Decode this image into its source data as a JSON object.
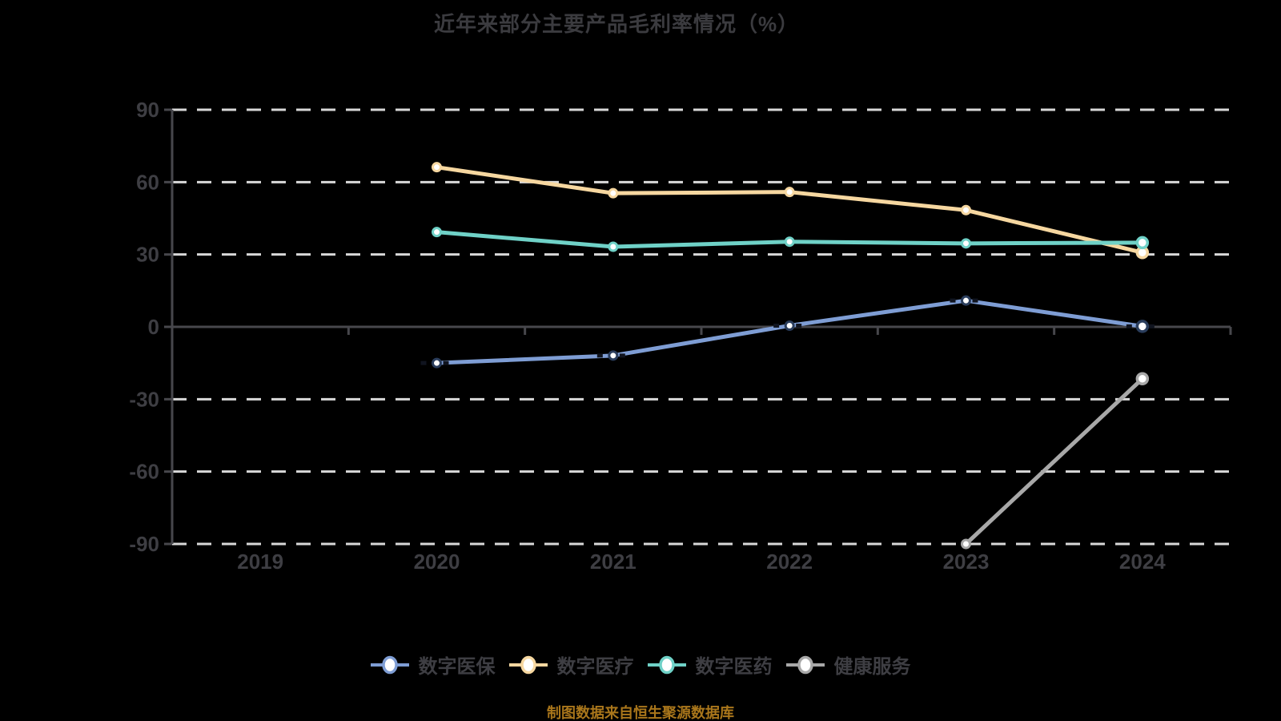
{
  "title": {
    "text": "近年来部分主要产品毛利率情况（%）"
  },
  "caption": {
    "text": "制图数据来自恒生聚源数据库",
    "color": "#A9761B"
  },
  "chart_data": {
    "type": "line",
    "title": "近年来部分主要产品毛利率情况（%）",
    "categories": [
      "2019",
      "2020",
      "2021",
      "2022",
      "2023",
      "2024"
    ],
    "yticks": [
      90,
      60,
      30,
      0,
      -30,
      -60,
      -90
    ],
    "ylim": [
      -90,
      90
    ],
    "grid": "horizontal dashed gridlines, solid zero axis line",
    "legend_position": "bottom",
    "background_color": "#000000",
    "axis_color": "#47474C",
    "gridline_color": "#D8D8D8",
    "label_color": "#3E3E43",
    "title_color": "#3B3B3F",
    "series": [
      {
        "name": "数字医保",
        "color": "#7E9DD4",
        "marker_ring": "#2A3D5C",
        "dash_accent": true,
        "values": [
          null,
          -15.0,
          -11.9,
          0.5,
          10.9,
          0.2
        ]
      },
      {
        "name": "数字医疗",
        "color": "#F6D7A0",
        "values": [
          null,
          66.2,
          55.4,
          55.9,
          48.4,
          30.8
        ]
      },
      {
        "name": "数字医药",
        "color": "#6FD1C7",
        "values": [
          null,
          39.3,
          33.2,
          35.3,
          34.6,
          34.9
        ]
      },
      {
        "name": "健康服务",
        "color": "#A8A8A8",
        "values": [
          null,
          null,
          null,
          null,
          -90.0,
          -21.5
        ]
      }
    ]
  }
}
